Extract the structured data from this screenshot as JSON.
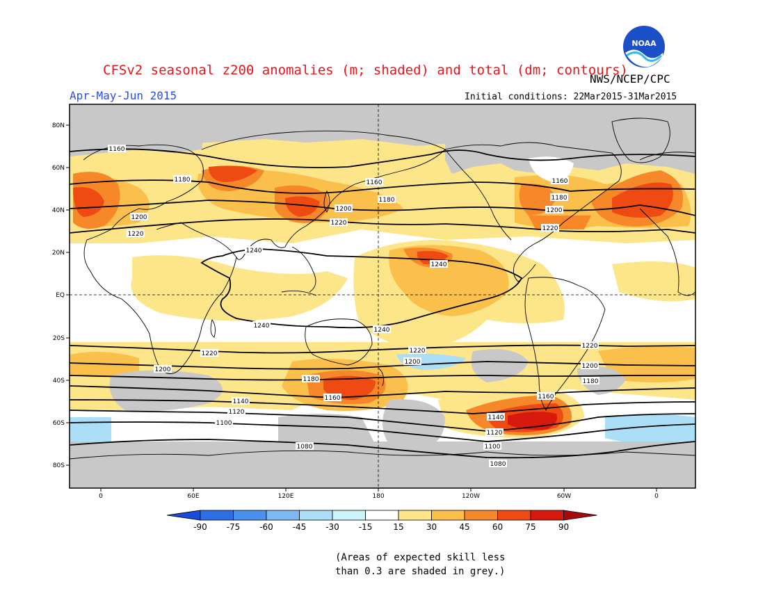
{
  "header": {
    "title": "CFSv2 seasonal z200 anomalies (m; shaded) and total (dm; contours)",
    "season": "Apr-May-Jun 2015",
    "agency": "NWS/NCEP/CPC",
    "initial_conditions": "Initial conditions: 22Mar2015-31Mar2015",
    "logo_text": "NOAA"
  },
  "map": {
    "lat_labels": [
      "80N",
      "60N",
      "40N",
      "20N",
      "EQ",
      "20S",
      "40S",
      "60S",
      "80S"
    ],
    "lon_labels": [
      "0",
      "60E",
      "120E",
      "180",
      "120W",
      "60W",
      "0"
    ],
    "contour_labels": [
      {
        "text": "1160",
        "region": "north-atlantic"
      },
      {
        "text": "1180",
        "region": "western-asia"
      },
      {
        "text": "1200",
        "region": "europe"
      },
      {
        "text": "1220",
        "region": "north-africa"
      },
      {
        "text": "1240",
        "region": "south-asia"
      },
      {
        "text": "1200",
        "region": "japan"
      },
      {
        "text": "1220",
        "region": "north-pacific"
      },
      {
        "text": "1160",
        "region": "bering"
      },
      {
        "text": "1180",
        "region": "north-pacific-west"
      },
      {
        "text": "1240",
        "region": "central-pacific"
      },
      {
        "text": "1160",
        "region": "canada"
      },
      {
        "text": "1180",
        "region": "canada-south"
      },
      {
        "text": "1200",
        "region": "usa"
      },
      {
        "text": "1220",
        "region": "usa-south"
      },
      {
        "text": "1240",
        "region": "indian-ocean"
      },
      {
        "text": "1240",
        "region": "equatorial-pacific"
      },
      {
        "text": "1220",
        "region": "south-indian"
      },
      {
        "text": "1200",
        "region": "south-atlantic"
      },
      {
        "text": "1220",
        "region": "south-pacific"
      },
      {
        "text": "1200",
        "region": "south-pacific-2"
      },
      {
        "text": "1180",
        "region": "tasman"
      },
      {
        "text": "1160",
        "region": "south-of-nz"
      },
      {
        "text": "1140",
        "region": "southern-indian"
      },
      {
        "text": "1120",
        "region": "southern-indian-2"
      },
      {
        "text": "1100",
        "region": "southern-ocean"
      },
      {
        "text": "1080",
        "region": "antarctic"
      },
      {
        "text": "1220",
        "region": "south-america"
      },
      {
        "text": "1200",
        "region": "south-atlantic-2"
      },
      {
        "text": "1180",
        "region": "argentina"
      },
      {
        "text": "1160",
        "region": "patagonia"
      },
      {
        "text": "1140",
        "region": "drake-north"
      },
      {
        "text": "1120",
        "region": "drake"
      },
      {
        "text": "1100",
        "region": "drake-south"
      },
      {
        "text": "1080",
        "region": "weddell"
      }
    ]
  },
  "colorbar": {
    "labels": [
      "-90",
      "-75",
      "-60",
      "-45",
      "-30",
      "-15",
      "15",
      "30",
      "45",
      "60",
      "75",
      "90"
    ],
    "colors": [
      "#1a4ad8",
      "#2d6fe6",
      "#4a90ee",
      "#7cb8f2",
      "#aadff7",
      "#cdf2f8",
      "#ffffff",
      "#fde58a",
      "#fbbf4c",
      "#f7882a",
      "#ef4a12",
      "#d81a0e",
      "#a80a0a"
    ]
  },
  "footnote": {
    "line1": "(Areas of expected skill less",
    "line2": "than 0.3 are shaded in grey.)"
  }
}
